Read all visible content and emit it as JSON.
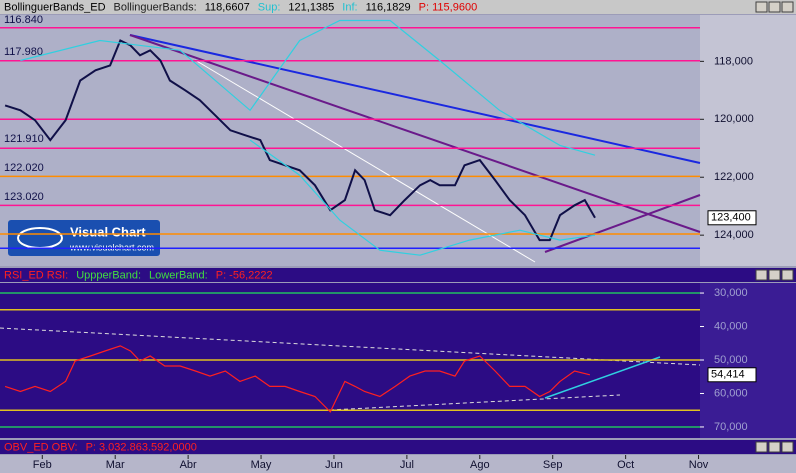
{
  "logo": {
    "title": "Visual Chart",
    "url": "www.visualchart.com"
  },
  "chart_data": [
    {
      "type": "line",
      "header": [
        {
          "text": "BollinguerBands_ED",
          "color": "#000000"
        },
        {
          "text": "BollinguerBands:",
          "color": "#202020"
        },
        {
          "text": "118,6607",
          "color": "#000000"
        },
        {
          "text": "Sup:",
          "color": "#20c0d0"
        },
        {
          "text": "121,1385",
          "color": "#000000"
        },
        {
          "text": "Inf:",
          "color": "#20c0d0"
        },
        {
          "text": "116,1829",
          "color": "#000000"
        },
        {
          "text": "P: 115,9600",
          "color": "#e00000"
        }
      ],
      "y_inverted": true,
      "ylim": [
        116400,
        125030
      ],
      "yticks": [
        {
          "value": 118000,
          "label": "118,000"
        },
        {
          "value": 120000,
          "label": "120,000"
        },
        {
          "value": 122000,
          "label": "122,000"
        },
        {
          "value": 124000,
          "label": "124,000"
        }
      ],
      "levels": [
        {
          "value": 116840,
          "color": "#ff1493"
        },
        {
          "value": 117980,
          "color": "#ff1493"
        },
        {
          "value": 120000,
          "color": "#ff1493"
        },
        {
          "value": 121000,
          "color": "#ff1493"
        },
        {
          "value": 121970,
          "color": "#ff8c00"
        },
        {
          "value": 122970,
          "color": "#ff1493"
        },
        {
          "value": 123960,
          "color": "#ff8c00"
        },
        {
          "value": 124450,
          "color": "#2020ff"
        }
      ],
      "level_labels": [
        "116.840",
        "117.980",
        "121.910",
        "122.020",
        "123.020"
      ],
      "current": {
        "value": 123400,
        "label": "123,400"
      },
      "series": [
        {
          "name": "Price",
          "color": "#101048",
          "x": [
            -0.51,
            -0.3,
            -0.1,
            0.11,
            0.32,
            0.52,
            0.73,
            0.93,
            1.07,
            1.21,
            1.34,
            1.48,
            1.62,
            1.75,
            1.96,
            2.16,
            2.37,
            2.58,
            2.78,
            2.99,
            3.12,
            3.33,
            3.53,
            3.74,
            3.95,
            4.15,
            4.29,
            4.42,
            4.56,
            4.77,
            4.97,
            5.18,
            5.32,
            5.45,
            5.66,
            5.79,
            6.0,
            6.21,
            6.41,
            6.62,
            6.82,
            6.96,
            7.1,
            7.3,
            7.44,
            7.58
          ],
          "values": [
            119520,
            119690,
            120030,
            120720,
            120030,
            118660,
            118310,
            118140,
            117280,
            117450,
            117790,
            117620,
            117970,
            118660,
            119000,
            119340,
            119860,
            120380,
            120550,
            120720,
            121410,
            121590,
            121760,
            122280,
            123140,
            122790,
            121760,
            122100,
            123140,
            123310,
            122790,
            122280,
            122100,
            122280,
            122280,
            121590,
            121410,
            122100,
            122790,
            123310,
            124170,
            124170,
            123310,
            122970,
            122790,
            123400
          ]
        },
        {
          "name": "Sup",
          "color": "#30d0e0",
          "x": [
            -0.3,
            0.79,
            1.89,
            2.85,
            3.53,
            4.08,
            4.77,
            5.45,
            6.27,
            7.1,
            7.58
          ],
          "values": [
            117970,
            117280,
            117620,
            119690,
            117280,
            116590,
            116590,
            117970,
            119690,
            120900,
            121240
          ]
        },
        {
          "name": "Inf",
          "color": "#30d0e0",
          "x": [
            2.85,
            3.53,
            4.08,
            4.63,
            5.18,
            5.86,
            6.55,
            7.1,
            7.58
          ],
          "values": [
            120720,
            121930,
            123480,
            124520,
            124690,
            124170,
            123830,
            124170,
            124000
          ]
        }
      ]
    },
    {
      "type": "line",
      "header": [
        {
          "text": "RSI_ED  RSI:",
          "color": "#ff2020"
        },
        {
          "text": "UppperBand:",
          "color": "#40e040"
        },
        {
          "text": "LowerBand:",
          "color": "#40e040"
        },
        {
          "text": "P: -56,2222",
          "color": "#ff2020"
        }
      ],
      "y_inverted": true,
      "ylim": [
        27,
        73
      ],
      "yticks": [
        {
          "value": 30,
          "label": "30,000"
        },
        {
          "value": 40,
          "label": "40,000"
        },
        {
          "value": 50,
          "label": "50,000"
        },
        {
          "value": 60,
          "label": "60,000"
        },
        {
          "value": 70,
          "label": "70,000"
        }
      ],
      "levels": [
        {
          "value": 30,
          "color": "#20c060"
        },
        {
          "value": 35,
          "color": "#e0c020"
        },
        {
          "value": 50,
          "color": "#e0c020"
        },
        {
          "value": 65,
          "color": "#e0c020"
        },
        {
          "value": 70,
          "color": "#20c060"
        }
      ],
      "current": {
        "value": 54.414,
        "label": "54,414"
      },
      "series": [
        {
          "name": "RSI",
          "color": "#ff2020",
          "x": [
            -0.51,
            -0.3,
            -0.1,
            0.11,
            0.32,
            0.45,
            0.66,
            0.86,
            1.07,
            1.21,
            1.34,
            1.48,
            1.68,
            1.89,
            2.1,
            2.3,
            2.51,
            2.71,
            2.92,
            3.12,
            3.33,
            3.53,
            3.74,
            3.95,
            4.15,
            4.29,
            4.42,
            4.63,
            4.84,
            5.04,
            5.25,
            5.45,
            5.66,
            5.79,
            6.0,
            6.21,
            6.41,
            6.62,
            6.82,
            6.96,
            7.1,
            7.3,
            7.51
          ],
          "values": [
            57.9,
            59.4,
            57.9,
            59.4,
            56.4,
            50.3,
            48.8,
            47.3,
            45.8,
            47.3,
            50.3,
            48.8,
            51.8,
            51.8,
            53.3,
            54.8,
            53.3,
            56.4,
            54.8,
            57.9,
            57.9,
            59.4,
            60.9,
            65.5,
            56.4,
            57.9,
            59.4,
            60.9,
            57.9,
            54.8,
            53.3,
            53.3,
            54.8,
            50.3,
            48.8,
            53.3,
            57.9,
            57.9,
            60.9,
            59.4,
            56.4,
            53.3,
            54.414
          ]
        }
      ]
    },
    {
      "type": "line",
      "header": [
        {
          "text": "OBV_ED  OBV:",
          "color": "#ff2020"
        },
        {
          "text": "P: 3.032.863.592,0000",
          "color": "#ff2020"
        }
      ],
      "xlim": [
        -0.58,
        9.02
      ],
      "xticks": [
        {
          "value": 0,
          "label": "Feb"
        },
        {
          "value": 1,
          "label": "Mar"
        },
        {
          "value": 2,
          "label": "Abr"
        },
        {
          "value": 3,
          "label": "May"
        },
        {
          "value": 4,
          "label": "Jun"
        },
        {
          "value": 5,
          "label": "Jul"
        },
        {
          "value": 6,
          "label": "Ago"
        },
        {
          "value": 7,
          "label": "Sep"
        },
        {
          "value": 8,
          "label": "Oct"
        },
        {
          "value": 9,
          "label": "Nov"
        }
      ]
    }
  ]
}
